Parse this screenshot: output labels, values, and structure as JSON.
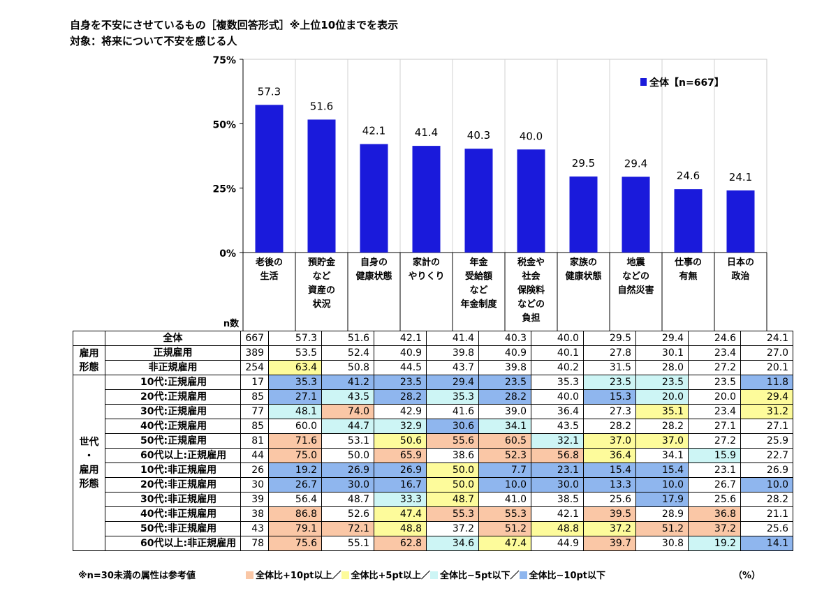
{
  "header": {
    "title": "自身を不安にさせているもの［複数回答形式］※上位10位までを表示",
    "subtitle": "対象：将来について不安を感じる人"
  },
  "chart_data": {
    "type": "bar",
    "categories": [
      "老後の\n生活",
      "預貯金\nなど\n資産の\n状況",
      "自身の\n健康状態",
      "家計の\nやりくり",
      "年金\n受給額\nなど\n年金制度",
      "税金や\n社会\n保険料\nなどの\n負担",
      "家族の\n健康状態",
      "地震\nなどの\n自然災害",
      "仕事の\n有無",
      "日本の\n政治"
    ],
    "series": [
      {
        "name": "全体【n=667】",
        "values": [
          57.3,
          51.6,
          42.1,
          41.4,
          40.3,
          40.0,
          29.5,
          29.4,
          24.6,
          24.1
        ]
      }
    ],
    "ylim": [
      0,
      75
    ],
    "yticks": [
      "0%",
      "25%",
      "50%",
      "75%"
    ],
    "data_labels": [
      "57.3",
      "51.6",
      "42.1",
      "41.4",
      "40.3",
      "40.0",
      "29.5",
      "29.4",
      "24.6",
      "24.1"
    ],
    "bar_color": "#1a1adb",
    "grid": "vertical",
    "legend_position": "top-right",
    "table": {
      "n_header": "n数",
      "groups": [
        {
          "label": "",
          "rows": [
            {
              "label": "全体",
              "n": "667",
              "values": [
                "57.3",
                "51.6",
                "42.1",
                "41.4",
                "40.3",
                "40.0",
                "29.5",
                "29.4",
                "24.6",
                "24.1"
              ]
            }
          ]
        },
        {
          "label": "雇用\n形態",
          "rows": [
            {
              "label": "正規雇用",
              "n": "389",
              "values": [
                "53.5",
                "52.4",
                "40.9",
                "39.8",
                "40.9",
                "40.1",
                "27.8",
                "30.1",
                "23.4",
                "27.0"
              ]
            },
            {
              "label": "非正規雇用",
              "n": "254",
              "values": [
                "63.4",
                "50.8",
                "44.5",
                "43.7",
                "39.8",
                "40.2",
                "31.5",
                "28.0",
                "27.2",
                "20.1"
              ]
            }
          ]
        },
        {
          "label": "世代\n・\n雇用\n形態",
          "rows": [
            {
              "label": "10代:正規雇用",
              "n": "17",
              "values": [
                "35.3",
                "41.2",
                "23.5",
                "29.4",
                "23.5",
                "35.3",
                "23.5",
                "23.5",
                "23.5",
                "11.8"
              ]
            },
            {
              "label": "20代:正規雇用",
              "n": "85",
              "values": [
                "27.1",
                "43.5",
                "28.2",
                "35.3",
                "28.2",
                "40.0",
                "15.3",
                "20.0",
                "20.0",
                "29.4"
              ]
            },
            {
              "label": "30代:正規雇用",
              "n": "77",
              "values": [
                "48.1",
                "74.0",
                "42.9",
                "41.6",
                "39.0",
                "36.4",
                "27.3",
                "35.1",
                "23.4",
                "31.2"
              ]
            },
            {
              "label": "40代:正規雇用",
              "n": "85",
              "values": [
                "60.0",
                "44.7",
                "32.9",
                "30.6",
                "34.1",
                "43.5",
                "28.2",
                "28.2",
                "27.1",
                "27.1"
              ]
            },
            {
              "label": "50代:正規雇用",
              "n": "81",
              "values": [
                "71.6",
                "53.1",
                "50.6",
                "55.6",
                "60.5",
                "32.1",
                "37.0",
                "37.0",
                "27.2",
                "25.9"
              ]
            },
            {
              "label": "60代以上:正規雇用",
              "n": "44",
              "values": [
                "75.0",
                "50.0",
                "65.9",
                "38.6",
                "52.3",
                "56.8",
                "36.4",
                "34.1",
                "15.9",
                "22.7"
              ]
            },
            {
              "label": "10代:非正規雇用",
              "n": "26",
              "values": [
                "19.2",
                "26.9",
                "26.9",
                "50.0",
                "7.7",
                "23.1",
                "15.4",
                "15.4",
                "23.1",
                "26.9"
              ]
            },
            {
              "label": "20代:非正規雇用",
              "n": "30",
              "values": [
                "26.7",
                "30.0",
                "16.7",
                "50.0",
                "10.0",
                "30.0",
                "13.3",
                "10.0",
                "26.7",
                "10.0"
              ]
            },
            {
              "label": "30代:非正規雇用",
              "n": "39",
              "values": [
                "56.4",
                "48.7",
                "33.3",
                "48.7",
                "41.0",
                "38.5",
                "25.6",
                "17.9",
                "25.6",
                "28.2"
              ]
            },
            {
              "label": "40代:非正規雇用",
              "n": "38",
              "values": [
                "86.8",
                "52.6",
                "47.4",
                "55.3",
                "55.3",
                "42.1",
                "39.5",
                "28.9",
                "36.8",
                "21.1"
              ]
            },
            {
              "label": "50代:非正規雇用",
              "n": "43",
              "values": [
                "79.1",
                "72.1",
                "48.8",
                "37.2",
                "51.2",
                "48.8",
                "37.2",
                "51.2",
                "37.2",
                "25.6"
              ]
            },
            {
              "label": "60代以上:非正規雇用",
              "n": "78",
              "values": [
                "75.6",
                "55.1",
                "62.8",
                "34.6",
                "47.4",
                "44.9",
                "39.7",
                "30.8",
                "19.2",
                "14.1"
              ]
            }
          ]
        }
      ]
    },
    "highlight_colors": {
      "plus10": "#fac7a6",
      "plus5": "#fdfb9b",
      "minus5": "#cdf5f5",
      "minus10": "#8fb6ee"
    }
  },
  "footer": {
    "note": "※n=30未満の属性は参考値",
    "legend_plus10": "全体比+10pt以上",
    "legend_plus5": "全体比+5pt以上",
    "legend_minus5": "全体比−5pt以下",
    "legend_minus10": "全体比−10pt以下",
    "sep": "／",
    "unit": "（%）"
  }
}
